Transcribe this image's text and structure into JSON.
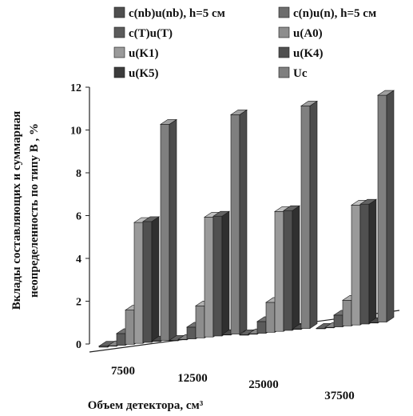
{
  "chart_data": {
    "type": "bar",
    "style": "3d-clustered-column",
    "categories": [
      "7500",
      "12500",
      "25000",
      "37500"
    ],
    "xlabel": "Объем детектора, см³",
    "ylabel_line1": "Вклады составляющих и суммарная",
    "ylabel_line2": "неопределенность  по типу B , %",
    "ylim": [
      0,
      12
    ],
    "yticks": [
      "0",
      "2",
      "4",
      "6",
      "8",
      "10",
      "12"
    ],
    "grid": false,
    "legend_position": "top",
    "series": [
      {
        "name": "c(nb)u(nb), h=5 см",
        "color": "#4f4f4f",
        "values": [
          0.05,
          0.02,
          0.02,
          0.02
        ]
      },
      {
        "name": "c(n)u(n), h=5 см",
        "color": "#6d6d6d",
        "values": [
          0.02,
          0.02,
          0.02,
          0.02
        ]
      },
      {
        "name": "c(T)u(T)",
        "color": "#5b5b5b",
        "values": [
          0.55,
          0.55,
          0.55,
          0.55
        ]
      },
      {
        "name": "u(A0)",
        "color": "#8d8d8d",
        "values": [
          1.6,
          1.5,
          1.4,
          1.2
        ]
      },
      {
        "name": "u(K1)",
        "color": "#9a9a9a",
        "values": [
          5.65,
          5.6,
          5.6,
          5.6
        ]
      },
      {
        "name": "u(K4)",
        "color": "#505050",
        "values": [
          5.65,
          5.6,
          5.6,
          5.6
        ]
      },
      {
        "name": "u(K5)",
        "color": "#3c3c3c",
        "values": [
          0.0,
          0.0,
          0.0,
          0.0
        ]
      },
      {
        "name": "Uc",
        "color": "#7f7f7f",
        "values": [
          10.1,
          10.25,
          10.4,
          10.6
        ]
      }
    ]
  }
}
